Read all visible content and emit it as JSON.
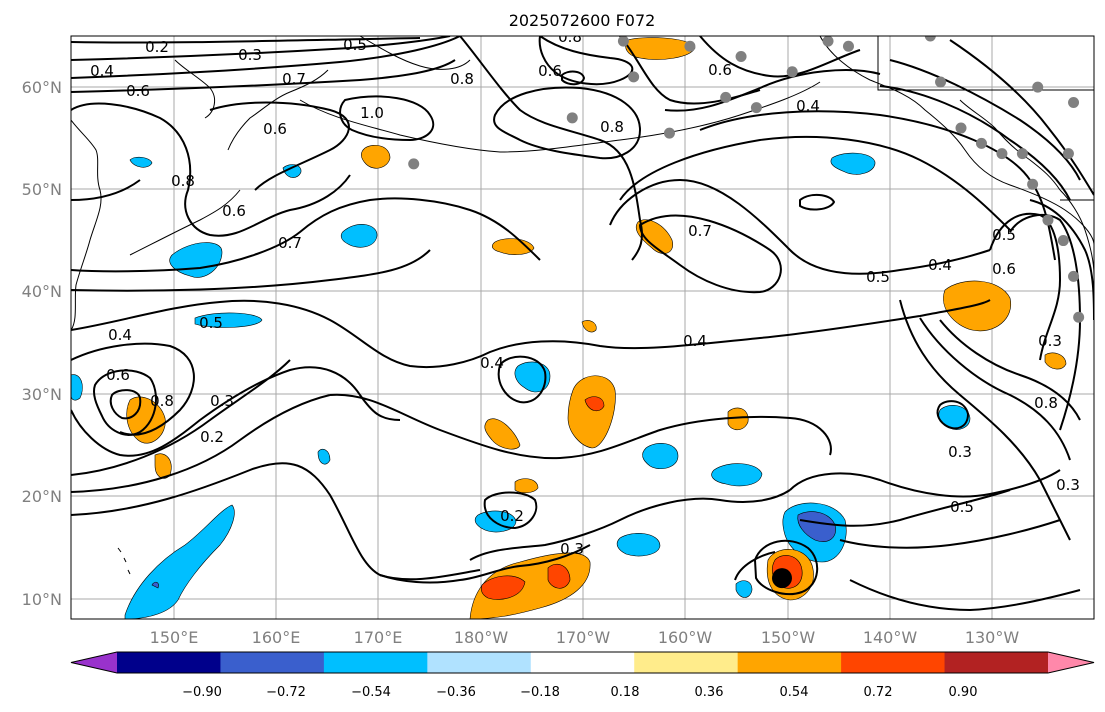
{
  "title": "2025072600 F072",
  "map": {
    "lon_range": [
      140,
      240
    ],
    "lat_range": [
      8,
      65
    ],
    "lon_ticks": [
      "150°E",
      "160°E",
      "170°E",
      "180°W",
      "170°W",
      "160°W",
      "150°W",
      "140°W",
      "130°W"
    ],
    "lat_ticks": [
      "10°N",
      "20°N",
      "30°N",
      "40°N",
      "50°N",
      "60°N"
    ],
    "grid": true
  },
  "colorbar": {
    "ticks": [
      "−0.90",
      "−0.72",
      "−0.54",
      "−0.36",
      "−0.18",
      "0.18",
      "0.36",
      "0.54",
      "0.72",
      "0.90"
    ],
    "colors": [
      "#9932cc",
      "#00008b",
      "#3a5fcd",
      "#00bfff",
      "#b0e2ff",
      "#ffffff",
      "#ffec8b",
      "#ffa500",
      "#ff4500",
      "#b22222",
      "#ff88aa"
    ]
  },
  "contour_labels": [
    "0.2",
    "0.3",
    "0.5",
    "0.4",
    "0.6",
    "0.7",
    "0.6",
    "1.0",
    "0.8",
    "0.8",
    "0.6",
    "0.8",
    "0.6",
    "0.4",
    "0.6",
    "0.7",
    "0.7",
    "0.5",
    "0.4",
    "0.5",
    "0.6",
    "0.4",
    "0.5",
    "0.6",
    "0.8",
    "0.2",
    "0.3",
    "0.4",
    "0.4",
    "0.3",
    "0.8",
    "0.3",
    "0.5",
    "0.3",
    "0.2",
    "0.3",
    "0.8"
  ],
  "markers": {
    "large_dot": {
      "lon": 209.5,
      "lat": 12
    },
    "gray_dots": [
      {
        "lon": 194,
        "lat": 64.5
      },
      {
        "lon": 200.5,
        "lat": 64
      },
      {
        "lon": 205.5,
        "lat": 63
      },
      {
        "lon": 210.5,
        "lat": 61.5
      },
      {
        "lon": 214,
        "lat": 64.5
      },
      {
        "lon": 216,
        "lat": 64
      },
      {
        "lon": 195,
        "lat": 61
      },
      {
        "lon": 204,
        "lat": 59
      },
      {
        "lon": 207,
        "lat": 58
      },
      {
        "lon": 189,
        "lat": 57
      },
      {
        "lon": 198.5,
        "lat": 55.5
      },
      {
        "lon": 225,
        "lat": 60.5
      },
      {
        "lon": 234.5,
        "lat": 60
      },
      {
        "lon": 238,
        "lat": 58.5
      },
      {
        "lon": 227,
        "lat": 56
      },
      {
        "lon": 233,
        "lat": 53.5
      },
      {
        "lon": 234,
        "lat": 50.5
      },
      {
        "lon": 237.5,
        "lat": 53.5
      },
      {
        "lon": 237,
        "lat": 45
      },
      {
        "lon": 238,
        "lat": 41.5
      },
      {
        "lon": 238.5,
        "lat": 37.5
      },
      {
        "lon": 224,
        "lat": 65
      },
      {
        "lon": 235.5,
        "lat": 47
      },
      {
        "lon": 229,
        "lat": 54.5
      },
      {
        "lon": 231,
        "lat": 53.5
      },
      {
        "lon": 173.5,
        "lat": 52.5
      }
    ]
  }
}
